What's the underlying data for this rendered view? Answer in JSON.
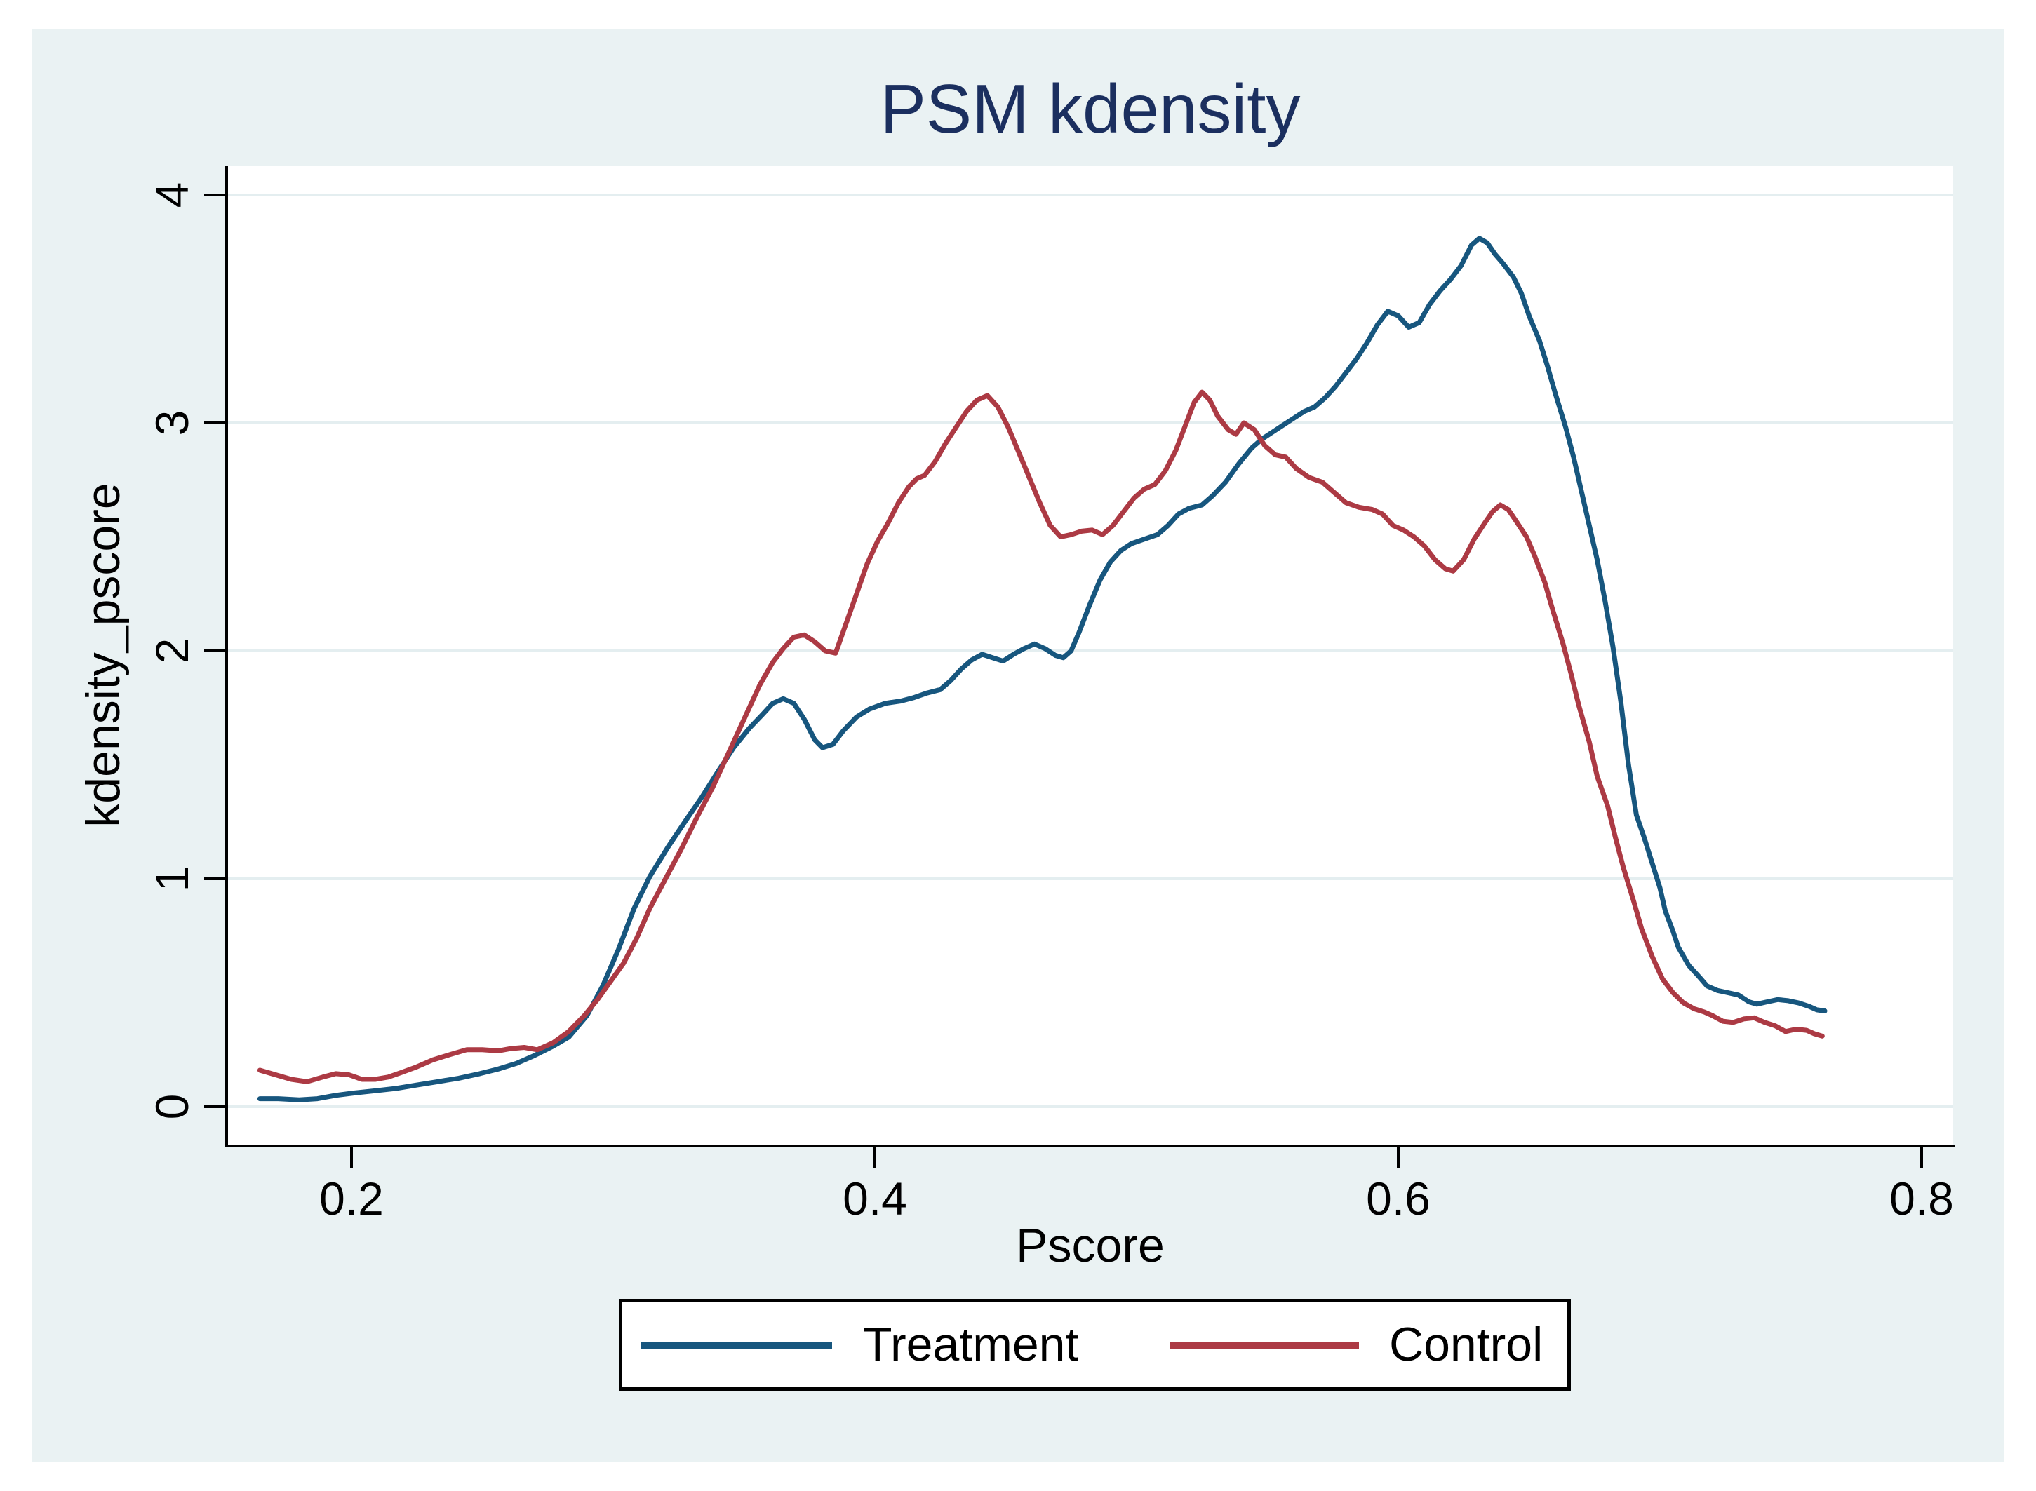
{
  "title": "PSM kdensity",
  "axes": {
    "x": {
      "label": "Pscore",
      "tick_values": [
        0.2,
        0.4,
        0.6,
        0.8
      ],
      "tick_labels": [
        "0.2",
        "0.4",
        "0.6",
        "0.8"
      ]
    },
    "y": {
      "label": "kdensity_pscore",
      "tick_values": [
        0,
        1,
        2,
        3,
        4
      ],
      "tick_labels": [
        "0",
        "1",
        "2",
        "3",
        "4"
      ]
    }
  },
  "legend": {
    "items": [
      {
        "label": "Treatment",
        "color": "#17567e"
      },
      {
        "label": "Control",
        "color": "#ac3a44"
      }
    ]
  },
  "colors": {
    "background": "#eaf2f3",
    "plot_background": "#ffffff",
    "gridline": "#e4eef0",
    "axis": "#000000",
    "title": "#1b2f5f",
    "treatment_line": "#17567e",
    "control_line": "#ac3a44"
  },
  "chart_data": {
    "type": "line",
    "title": "PSM kdensity",
    "xlabel": "Pscore",
    "ylabel": "kdensity_pscore",
    "xlim": [
      0.153,
      0.812
    ],
    "ylim": [
      -0.18,
      4.3
    ],
    "xticks": [
      0.2,
      0.4,
      0.6,
      0.8
    ],
    "yticks": [
      0,
      1,
      2,
      3,
      4
    ],
    "grid": true,
    "legend_position": "bottom",
    "series": [
      {
        "name": "Treatment",
        "color": "#17567e",
        "points": [
          [
            0.165,
            0.035
          ],
          [
            0.172,
            0.035
          ],
          [
            0.18,
            0.03
          ],
          [
            0.187,
            0.035
          ],
          [
            0.194,
            0.05
          ],
          [
            0.201,
            0.06
          ],
          [
            0.209,
            0.07
          ],
          [
            0.217,
            0.08
          ],
          [
            0.225,
            0.095
          ],
          [
            0.233,
            0.11
          ],
          [
            0.241,
            0.125
          ],
          [
            0.249,
            0.145
          ],
          [
            0.256,
            0.165
          ],
          [
            0.263,
            0.19
          ],
          [
            0.27,
            0.225
          ],
          [
            0.277,
            0.265
          ],
          [
            0.283,
            0.305
          ],
          [
            0.29,
            0.4
          ],
          [
            0.296,
            0.53
          ],
          [
            0.302,
            0.69
          ],
          [
            0.308,
            0.87
          ],
          [
            0.314,
            1.01
          ],
          [
            0.321,
            1.14
          ],
          [
            0.328,
            1.26
          ],
          [
            0.334,
            1.36
          ],
          [
            0.34,
            1.47
          ],
          [
            0.346,
            1.575
          ],
          [
            0.352,
            1.66
          ],
          [
            0.357,
            1.72
          ],
          [
            0.361,
            1.77
          ],
          [
            0.365,
            1.79
          ],
          [
            0.369,
            1.77
          ],
          [
            0.373,
            1.7
          ],
          [
            0.377,
            1.61
          ],
          [
            0.38,
            1.575
          ],
          [
            0.384,
            1.59
          ],
          [
            0.388,
            1.65
          ],
          [
            0.393,
            1.71
          ],
          [
            0.398,
            1.745
          ],
          [
            0.404,
            1.77
          ],
          [
            0.41,
            1.78
          ],
          [
            0.415,
            1.795
          ],
          [
            0.42,
            1.815
          ],
          [
            0.425,
            1.83
          ],
          [
            0.429,
            1.87
          ],
          [
            0.433,
            1.92
          ],
          [
            0.437,
            1.96
          ],
          [
            0.441,
            1.985
          ],
          [
            0.445,
            1.97
          ],
          [
            0.449,
            1.955
          ],
          [
            0.453,
            1.985
          ],
          [
            0.457,
            2.01
          ],
          [
            0.461,
            2.03
          ],
          [
            0.465,
            2.01
          ],
          [
            0.469,
            1.98
          ],
          [
            0.472,
            1.97
          ],
          [
            0.475,
            2.0
          ],
          [
            0.478,
            2.08
          ],
          [
            0.482,
            2.2
          ],
          [
            0.486,
            2.31
          ],
          [
            0.49,
            2.39
          ],
          [
            0.494,
            2.44
          ],
          [
            0.498,
            2.47
          ],
          [
            0.503,
            2.49
          ],
          [
            0.508,
            2.51
          ],
          [
            0.512,
            2.55
          ],
          [
            0.516,
            2.6
          ],
          [
            0.52,
            2.625
          ],
          [
            0.525,
            2.64
          ],
          [
            0.529,
            2.68
          ],
          [
            0.534,
            2.74
          ],
          [
            0.539,
            2.82
          ],
          [
            0.544,
            2.89
          ],
          [
            0.548,
            2.93
          ],
          [
            0.552,
            2.96
          ],
          [
            0.556,
            2.99
          ],
          [
            0.56,
            3.02
          ],
          [
            0.564,
            3.05
          ],
          [
            0.568,
            3.07
          ],
          [
            0.572,
            3.11
          ],
          [
            0.576,
            3.16
          ],
          [
            0.58,
            3.22
          ],
          [
            0.584,
            3.28
          ],
          [
            0.588,
            3.35
          ],
          [
            0.592,
            3.43
          ],
          [
            0.596,
            3.49
          ],
          [
            0.6,
            3.47
          ],
          [
            0.604,
            3.42
          ],
          [
            0.608,
            3.44
          ],
          [
            0.612,
            3.52
          ],
          [
            0.616,
            3.58
          ],
          [
            0.62,
            3.63
          ],
          [
            0.624,
            3.69
          ],
          [
            0.628,
            3.78
          ],
          [
            0.631,
            3.81
          ],
          [
            0.634,
            3.79
          ],
          [
            0.637,
            3.74
          ],
          [
            0.64,
            3.7
          ],
          [
            0.644,
            3.64
          ],
          [
            0.647,
            3.57
          ],
          [
            0.65,
            3.47
          ],
          [
            0.654,
            3.36
          ],
          [
            0.657,
            3.25
          ],
          [
            0.66,
            3.13
          ],
          [
            0.664,
            2.98
          ],
          [
            0.667,
            2.85
          ],
          [
            0.67,
            2.7
          ],
          [
            0.673,
            2.55
          ],
          [
            0.676,
            2.4
          ],
          [
            0.679,
            2.22
          ],
          [
            0.682,
            2.02
          ],
          [
            0.685,
            1.78
          ],
          [
            0.688,
            1.5
          ],
          [
            0.691,
            1.28
          ],
          [
            0.694,
            1.18
          ],
          [
            0.697,
            1.07
          ],
          [
            0.7,
            0.96
          ],
          [
            0.702,
            0.86
          ],
          [
            0.705,
            0.77
          ],
          [
            0.707,
            0.7
          ],
          [
            0.711,
            0.62
          ],
          [
            0.715,
            0.57
          ],
          [
            0.718,
            0.53
          ],
          [
            0.722,
            0.51
          ],
          [
            0.726,
            0.5
          ],
          [
            0.73,
            0.49
          ],
          [
            0.734,
            0.46
          ],
          [
            0.737,
            0.45
          ],
          [
            0.741,
            0.46
          ],
          [
            0.745,
            0.47
          ],
          [
            0.749,
            0.465
          ],
          [
            0.753,
            0.455
          ],
          [
            0.757,
            0.44
          ],
          [
            0.76,
            0.425
          ],
          [
            0.763,
            0.42
          ]
        ]
      },
      {
        "name": "Control",
        "color": "#ac3a44",
        "points": [
          [
            0.165,
            0.16
          ],
          [
            0.171,
            0.14
          ],
          [
            0.177,
            0.12
          ],
          [
            0.183,
            0.11
          ],
          [
            0.189,
            0.13
          ],
          [
            0.194,
            0.145
          ],
          [
            0.199,
            0.14
          ],
          [
            0.204,
            0.12
          ],
          [
            0.209,
            0.12
          ],
          [
            0.214,
            0.13
          ],
          [
            0.219,
            0.15
          ],
          [
            0.225,
            0.175
          ],
          [
            0.231,
            0.205
          ],
          [
            0.238,
            0.23
          ],
          [
            0.244,
            0.25
          ],
          [
            0.25,
            0.25
          ],
          [
            0.256,
            0.245
          ],
          [
            0.261,
            0.255
          ],
          [
            0.266,
            0.26
          ],
          [
            0.271,
            0.25
          ],
          [
            0.277,
            0.28
          ],
          [
            0.283,
            0.33
          ],
          [
            0.289,
            0.4
          ],
          [
            0.294,
            0.47
          ],
          [
            0.299,
            0.55
          ],
          [
            0.304,
            0.63
          ],
          [
            0.309,
            0.74
          ],
          [
            0.314,
            0.87
          ],
          [
            0.32,
            1.0
          ],
          [
            0.326,
            1.13
          ],
          [
            0.332,
            1.27
          ],
          [
            0.338,
            1.4
          ],
          [
            0.344,
            1.55
          ],
          [
            0.35,
            1.7
          ],
          [
            0.356,
            1.85
          ],
          [
            0.361,
            1.95
          ],
          [
            0.365,
            2.01
          ],
          [
            0.369,
            2.06
          ],
          [
            0.373,
            2.07
          ],
          [
            0.377,
            2.04
          ],
          [
            0.381,
            2.0
          ],
          [
            0.385,
            1.99
          ],
          [
            0.389,
            2.12
          ],
          [
            0.393,
            2.25
          ],
          [
            0.397,
            2.38
          ],
          [
            0.401,
            2.48
          ],
          [
            0.405,
            2.56
          ],
          [
            0.409,
            2.65
          ],
          [
            0.413,
            2.72
          ],
          [
            0.416,
            2.755
          ],
          [
            0.419,
            2.77
          ],
          [
            0.423,
            2.83
          ],
          [
            0.427,
            2.91
          ],
          [
            0.431,
            2.98
          ],
          [
            0.435,
            3.05
          ],
          [
            0.439,
            3.1
          ],
          [
            0.443,
            3.12
          ],
          [
            0.447,
            3.07
          ],
          [
            0.451,
            2.98
          ],
          [
            0.455,
            2.87
          ],
          [
            0.459,
            2.76
          ],
          [
            0.463,
            2.65
          ],
          [
            0.467,
            2.55
          ],
          [
            0.471,
            2.5
          ],
          [
            0.475,
            2.51
          ],
          [
            0.479,
            2.525
          ],
          [
            0.483,
            2.53
          ],
          [
            0.487,
            2.51
          ],
          [
            0.491,
            2.55
          ],
          [
            0.495,
            2.61
          ],
          [
            0.499,
            2.67
          ],
          [
            0.503,
            2.71
          ],
          [
            0.507,
            2.73
          ],
          [
            0.511,
            2.79
          ],
          [
            0.515,
            2.88
          ],
          [
            0.519,
            3.0
          ],
          [
            0.522,
            3.09
          ],
          [
            0.525,
            3.135
          ],
          [
            0.528,
            3.1
          ],
          [
            0.531,
            3.03
          ],
          [
            0.535,
            2.97
          ],
          [
            0.538,
            2.95
          ],
          [
            0.541,
            3.0
          ],
          [
            0.545,
            2.97
          ],
          [
            0.549,
            2.9
          ],
          [
            0.553,
            2.86
          ],
          [
            0.557,
            2.85
          ],
          [
            0.561,
            2.8
          ],
          [
            0.566,
            2.76
          ],
          [
            0.571,
            2.74
          ],
          [
            0.576,
            2.69
          ],
          [
            0.58,
            2.65
          ],
          [
            0.585,
            2.63
          ],
          [
            0.59,
            2.62
          ],
          [
            0.594,
            2.6
          ],
          [
            0.598,
            2.55
          ],
          [
            0.602,
            2.53
          ],
          [
            0.606,
            2.5
          ],
          [
            0.61,
            2.46
          ],
          [
            0.614,
            2.4
          ],
          [
            0.618,
            2.36
          ],
          [
            0.621,
            2.35
          ],
          [
            0.625,
            2.4
          ],
          [
            0.629,
            2.49
          ],
          [
            0.633,
            2.56
          ],
          [
            0.636,
            2.61
          ],
          [
            0.639,
            2.64
          ],
          [
            0.642,
            2.62
          ],
          [
            0.645,
            2.57
          ],
          [
            0.649,
            2.5
          ],
          [
            0.652,
            2.42
          ],
          [
            0.656,
            2.3
          ],
          [
            0.659,
            2.18
          ],
          [
            0.663,
            2.03
          ],
          [
            0.666,
            1.9
          ],
          [
            0.669,
            1.76
          ],
          [
            0.673,
            1.6
          ],
          [
            0.676,
            1.45
          ],
          [
            0.68,
            1.32
          ],
          [
            0.683,
            1.18
          ],
          [
            0.686,
            1.05
          ],
          [
            0.69,
            0.9
          ],
          [
            0.693,
            0.78
          ],
          [
            0.697,
            0.66
          ],
          [
            0.701,
            0.56
          ],
          [
            0.705,
            0.5
          ],
          [
            0.709,
            0.455
          ],
          [
            0.713,
            0.43
          ],
          [
            0.717,
            0.415
          ],
          [
            0.72,
            0.4
          ],
          [
            0.724,
            0.375
          ],
          [
            0.728,
            0.37
          ],
          [
            0.732,
            0.385
          ],
          [
            0.736,
            0.39
          ],
          [
            0.74,
            0.37
          ],
          [
            0.744,
            0.355
          ],
          [
            0.748,
            0.33
          ],
          [
            0.752,
            0.34
          ],
          [
            0.756,
            0.335
          ],
          [
            0.759,
            0.32
          ],
          [
            0.762,
            0.31
          ]
        ]
      }
    ]
  }
}
